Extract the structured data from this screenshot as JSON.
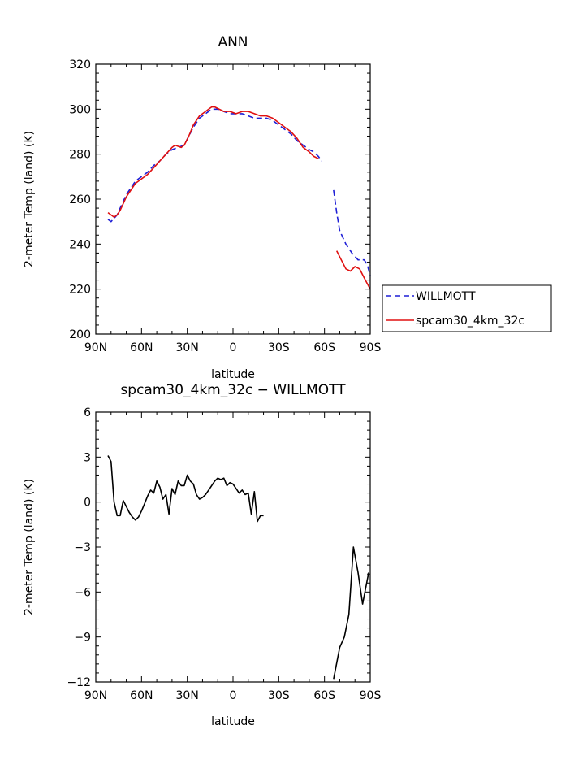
{
  "chart_data": [
    {
      "type": "line",
      "title": "ANN",
      "xlabel": "latitude",
      "ylabel": "2-meter Temp (land) (K)",
      "xlim": [
        90,
        -90
      ],
      "ylim": [
        200,
        320
      ],
      "x_ticks": [
        90,
        60,
        30,
        0,
        -30,
        -60,
        -90
      ],
      "x_tick_labels": [
        "90N",
        "60N",
        "30N",
        "0",
        "30S",
        "60S",
        "90S"
      ],
      "y_ticks": [
        200,
        220,
        240,
        260,
        280,
        300,
        320
      ],
      "y_tick_labels": [
        "200",
        "220",
        "240",
        "260",
        "280",
        "300",
        "320"
      ],
      "legend": {
        "placement": "outside-right"
      },
      "colors": {
        "WILLMOTT": "#1f1fd6",
        "spcam30_4km_32c": "#e01010"
      },
      "series": [
        {
          "name": "WILLMOTT",
          "style": "dashed",
          "segments": [
            [
              [
                82,
                251
              ],
              [
                80,
                250
              ],
              [
                76,
                253
              ],
              [
                74,
                256
              ],
              [
                72,
                259
              ],
              [
                70,
                262
              ],
              [
                67,
                265
              ],
              [
                64,
                268
              ],
              [
                60,
                270
              ],
              [
                56,
                272
              ],
              [
                52,
                275
              ],
              [
                48,
                277
              ],
              [
                44,
                280
              ],
              [
                40,
                282
              ],
              [
                36,
                283
              ],
              [
                32,
                284
              ],
              [
                29,
                288
              ],
              [
                26,
                292
              ],
              [
                22,
                296
              ],
              [
                18,
                298
              ],
              [
                14,
                300
              ],
              [
                10,
                300
              ],
              [
                6,
                299
              ],
              [
                2,
                298
              ],
              [
                -2,
                298
              ],
              [
                -6,
                298
              ],
              [
                -10,
                297
              ],
              [
                -14,
                296
              ],
              [
                -18,
                296
              ],
              [
                -22,
                296
              ],
              [
                -26,
                295
              ],
              [
                -30,
                293
              ],
              [
                -34,
                291
              ],
              [
                -38,
                289
              ],
              [
                -42,
                286
              ],
              [
                -46,
                284
              ],
              [
                -50,
                282
              ],
              [
                -53,
                281
              ],
              [
                -56,
                279
              ],
              [
                -58,
                277
              ]
            ],
            [
              [
                -66,
                264
              ],
              [
                -68,
                254
              ],
              [
                -70,
                246
              ],
              [
                -74,
                240
              ],
              [
                -78,
                236
              ],
              [
                -82,
                233
              ],
              [
                -86,
                233
              ],
              [
                -88,
                231
              ],
              [
                -90,
                226
              ]
            ]
          ]
        },
        {
          "name": "spcam30_4km_32c",
          "style": "solid",
          "segments": [
            [
              [
                82,
                254
              ],
              [
                80,
                253
              ],
              [
                78,
                252
              ],
              [
                76,
                253
              ],
              [
                74,
                255
              ],
              [
                72,
                258
              ],
              [
                70,
                261
              ],
              [
                67,
                264
              ],
              [
                64,
                267
              ],
              [
                60,
                269
              ],
              [
                56,
                271
              ],
              [
                52,
                274
              ],
              [
                48,
                277
              ],
              [
                44,
                280
              ],
              [
                40,
                283
              ],
              [
                38,
                284
              ],
              [
                34,
                283
              ],
              [
                32,
                284
              ],
              [
                29,
                288
              ],
              [
                26,
                293
              ],
              [
                22,
                297
              ],
              [
                18,
                299
              ],
              [
                14,
                301
              ],
              [
                12,
                301
              ],
              [
                9,
                300
              ],
              [
                6,
                299
              ],
              [
                2,
                299
              ],
              [
                -2,
                298
              ],
              [
                -6,
                299
              ],
              [
                -10,
                299
              ],
              [
                -14,
                298
              ],
              [
                -18,
                297
              ],
              [
                -22,
                297
              ],
              [
                -26,
                296
              ],
              [
                -30,
                294
              ],
              [
                -34,
                292
              ],
              [
                -38,
                290
              ],
              [
                -42,
                287
              ],
              [
                -46,
                283
              ],
              [
                -50,
                281
              ],
              [
                -53,
                279
              ],
              [
                -56,
                278
              ]
            ],
            [
              [
                -68,
                237
              ],
              [
                -71,
                233
              ],
              [
                -74,
                229
              ],
              [
                -77,
                228
              ],
              [
                -80,
                230
              ],
              [
                -83,
                229
              ],
              [
                -86,
                225
              ],
              [
                -90,
                220
              ]
            ]
          ]
        }
      ]
    },
    {
      "type": "line",
      "title": "spcam30_4km_32c − WILLMOTT",
      "xlabel": "latitude",
      "ylabel": "2-meter Temp (land) (K)",
      "xlim": [
        90,
        -90
      ],
      "ylim": [
        -12,
        6
      ],
      "x_ticks": [
        90,
        60,
        30,
        0,
        -30,
        -60,
        -90
      ],
      "x_tick_labels": [
        "90N",
        "60N",
        "30N",
        "0",
        "30S",
        "60S",
        "90S"
      ],
      "y_ticks": [
        -12,
        -9,
        -6,
        -3,
        0,
        3,
        6
      ],
      "y_tick_labels": [
        "−12",
        "−9",
        "−6",
        "−3",
        "0",
        "3",
        "6"
      ],
      "colors": {
        "difference": "#000000"
      },
      "series": [
        {
          "style": "solid",
          "segments": [
            [
              [
                82,
                3.1
              ],
              [
                80,
                2.7
              ],
              [
                78,
                0.0
              ],
              [
                76,
                -0.9
              ],
              [
                74,
                -0.9
              ],
              [
                72,
                0.1
              ],
              [
                70,
                -0.3
              ],
              [
                68,
                -0.7
              ],
              [
                66,
                -1.0
              ],
              [
                64,
                -1.2
              ],
              [
                62,
                -1.0
              ],
              [
                60,
                -0.6
              ],
              [
                58,
                -0.1
              ],
              [
                56,
                0.4
              ],
              [
                54,
                0.8
              ],
              [
                52,
                0.6
              ],
              [
                50,
                1.4
              ],
              [
                48,
                1.0
              ],
              [
                46,
                0.2
              ],
              [
                44,
                0.5
              ],
              [
                42,
                -0.8
              ],
              [
                40,
                0.9
              ],
              [
                38,
                0.5
              ],
              [
                36,
                1.4
              ],
              [
                34,
                1.1
              ],
              [
                32,
                1.1
              ],
              [
                30,
                1.8
              ],
              [
                28,
                1.4
              ],
              [
                26,
                1.2
              ],
              [
                24,
                0.5
              ],
              [
                22,
                0.2
              ],
              [
                20,
                0.3
              ],
              [
                18,
                0.5
              ],
              [
                16,
                0.8
              ],
              [
                14,
                1.1
              ],
              [
                12,
                1.4
              ],
              [
                10,
                1.6
              ],
              [
                8,
                1.5
              ],
              [
                6,
                1.6
              ],
              [
                4,
                1.1
              ],
              [
                2,
                1.3
              ],
              [
                0,
                1.2
              ],
              [
                -2,
                0.9
              ],
              [
                -4,
                0.6
              ],
              [
                -6,
                0.8
              ],
              [
                -8,
                0.5
              ],
              [
                -10,
                0.6
              ],
              [
                -12,
                -0.8
              ],
              [
                -14,
                0.7
              ],
              [
                -16,
                -1.3
              ],
              [
                -18,
                -0.9
              ],
              [
                -20,
                -0.9
              ]
            ],
            [
              [
                -66,
                -11.8
              ],
              [
                -70,
                -9.7
              ],
              [
                -73,
                -9.0
              ],
              [
                -76,
                -7.5
              ],
              [
                -79,
                -3.0
              ],
              [
                -82,
                -4.7
              ],
              [
                -85,
                -6.8
              ],
              [
                -89,
                -4.7
              ]
            ]
          ]
        }
      ]
    }
  ]
}
